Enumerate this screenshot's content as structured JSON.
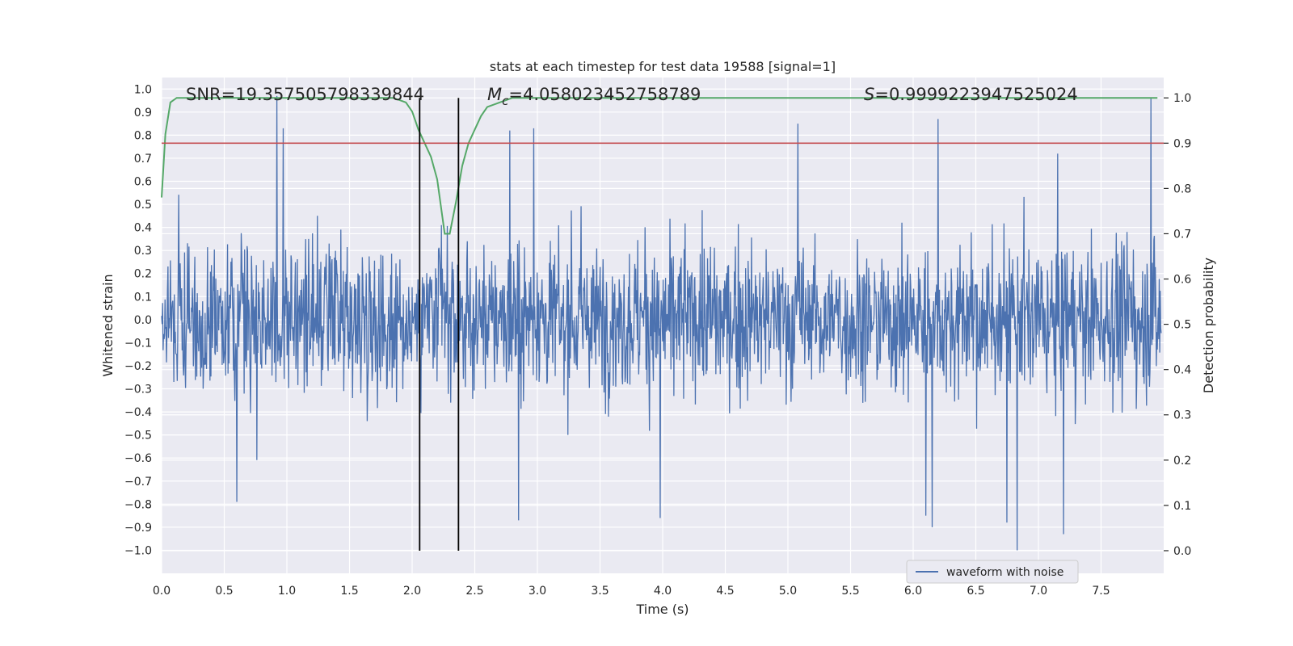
{
  "chart_data": {
    "type": "line",
    "title": "stats at each timestep for test data 19588 [signal=1]",
    "xlabel": "Time (s)",
    "ylabel": "Whitened strain",
    "y2label": "Detection probability",
    "xlim": [
      0.0,
      8.0
    ],
    "ylim": [
      -1.1,
      1.05
    ],
    "y2lim": [
      -0.05,
      1.045
    ],
    "xticks": [
      "0.0",
      "0.5",
      "1.0",
      "1.5",
      "2.0",
      "2.5",
      "3.0",
      "3.5",
      "4.0",
      "4.5",
      "5.0",
      "5.5",
      "6.0",
      "6.5",
      "7.0",
      "7.5"
    ],
    "yticks": [
      "1.0",
      "0.9",
      "0.8",
      "0.7",
      "0.6",
      "0.5",
      "0.4",
      "0.3",
      "0.2",
      "0.1",
      "0.0",
      "-0.1",
      "-0.2",
      "-0.3",
      "-0.4",
      "-0.5",
      "-0.6",
      "-0.7",
      "-0.8",
      "-0.9",
      "-1.0"
    ],
    "y2ticks": [
      "1.0",
      "0.9",
      "0.8",
      "0.7",
      "0.6",
      "0.5",
      "0.4",
      "0.3",
      "0.2",
      "0.1",
      "0.0"
    ],
    "annotations": {
      "snr": "SNR=19.357505798339844",
      "mc": "=4.058023452758789",
      "mc_symbol": "M",
      "mc_sub": "c",
      "s": "=0.9999223947525024",
      "s_symbol": "S"
    },
    "series": [
      {
        "name": "waveform with noise",
        "axis": "left",
        "color": "#4c72b0",
        "sample_count": 2048,
        "typical_envelope": 0.45,
        "peaks": [
          {
            "t": 0.92,
            "v": 0.97
          },
          {
            "t": 0.97,
            "v": 0.83
          },
          {
            "t": 0.6,
            "v": -0.79
          },
          {
            "t": 2.85,
            "v": -0.87
          },
          {
            "t": 2.78,
            "v": 0.82
          },
          {
            "t": 2.97,
            "v": 0.83
          },
          {
            "t": 3.98,
            "v": -0.86
          },
          {
            "t": 5.08,
            "v": 0.85
          },
          {
            "t": 6.1,
            "v": -0.85
          },
          {
            "t": 6.15,
            "v": -0.9
          },
          {
            "t": 6.2,
            "v": 0.87
          },
          {
            "t": 6.75,
            "v": -0.88
          },
          {
            "t": 6.83,
            "v": -1.0
          },
          {
            "t": 7.2,
            "v": -0.93
          },
          {
            "t": 7.9,
            "v": 0.96
          }
        ]
      },
      {
        "name": "detection probability",
        "axis": "right",
        "color": "#55a868",
        "x": [
          0.0,
          0.03,
          0.07,
          0.12,
          0.2,
          0.5,
          1.0,
          1.5,
          1.85,
          1.95,
          2.0,
          2.05,
          2.1,
          2.15,
          2.2,
          2.26,
          2.3,
          2.35,
          2.4,
          2.45,
          2.5,
          2.55,
          2.6,
          2.7,
          2.8,
          3.0,
          4.0,
          5.0,
          6.0,
          7.0,
          7.95
        ],
        "values": [
          0.78,
          0.92,
          0.99,
          1.0,
          1.0,
          1.0,
          1.0,
          1.0,
          1.0,
          0.99,
          0.97,
          0.93,
          0.9,
          0.87,
          0.82,
          0.7,
          0.7,
          0.77,
          0.85,
          0.9,
          0.93,
          0.96,
          0.98,
          0.99,
          1.0,
          1.0,
          1.0,
          1.0,
          1.0,
          1.0,
          1.0
        ]
      },
      {
        "name": "threshold",
        "axis": "right",
        "color": "#c44e52",
        "value": 0.9
      }
    ],
    "vlines": [
      2.06,
      2.37
    ],
    "legend": {
      "entries": [
        "waveform with noise"
      ],
      "placement": "lower-right"
    }
  }
}
